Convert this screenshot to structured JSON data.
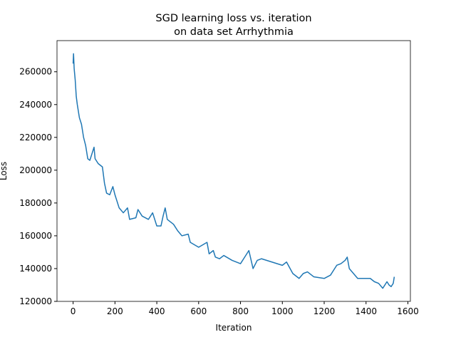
{
  "chart_data": {
    "type": "line",
    "title": [
      "SGD learning loss vs. iteration",
      "on data set Arrhythmia"
    ],
    "xlabel": "Iteration",
    "ylabel": "Loss",
    "x": [
      0,
      2,
      5,
      10,
      15,
      20,
      30,
      40,
      50,
      60,
      70,
      80,
      90,
      100,
      105,
      120,
      140,
      150,
      160,
      175,
      190,
      200,
      220,
      240,
      260,
      270,
      300,
      310,
      330,
      360,
      380,
      400,
      420,
      430,
      440,
      450,
      480,
      500,
      520,
      550,
      560,
      600,
      640,
      650,
      670,
      680,
      700,
      720,
      760,
      800,
      820,
      840,
      860,
      880,
      900,
      950,
      1000,
      1020,
      1050,
      1080,
      1100,
      1120,
      1150,
      1200,
      1230,
      1260,
      1280,
      1300,
      1310,
      1320,
      1340,
      1360,
      1400,
      1420,
      1440,
      1460,
      1480,
      1500,
      1510,
      1520,
      1530,
      1535
    ],
    "series": [
      {
        "color": "#1f77b4",
        "values": [
          265000,
          271000,
          262000,
          255000,
          245000,
          240000,
          232000,
          228000,
          220000,
          215000,
          207000,
          206000,
          210000,
          214000,
          207000,
          204000,
          202000,
          192000,
          186000,
          185000,
          190000,
          185000,
          177000,
          174000,
          177000,
          170000,
          171000,
          176000,
          172000,
          170000,
          174000,
          166000,
          166000,
          172000,
          177000,
          170000,
          167000,
          163000,
          160000,
          161000,
          156000,
          153000,
          156000,
          149000,
          151000,
          147000,
          146000,
          148000,
          145000,
          143000,
          147000,
          151000,
          140000,
          145000,
          146000,
          144000,
          142000,
          144000,
          137000,
          134000,
          137000,
          138000,
          135000,
          134000,
          136000,
          142000,
          143000,
          145000,
          147000,
          140000,
          137000,
          134000,
          134000,
          134000,
          132000,
          131000,
          128000,
          132000,
          130000,
          129000,
          131000,
          135000
        ]
      }
    ],
    "xlim": [
      -77,
      1612
    ],
    "ylim": [
      120000,
      279000
    ],
    "xticks": [
      0,
      200,
      400,
      600,
      800,
      1000,
      1200,
      1400,
      1600
    ],
    "yticks": [
      120000,
      140000,
      160000,
      180000,
      200000,
      220000,
      240000,
      260000
    ]
  }
}
